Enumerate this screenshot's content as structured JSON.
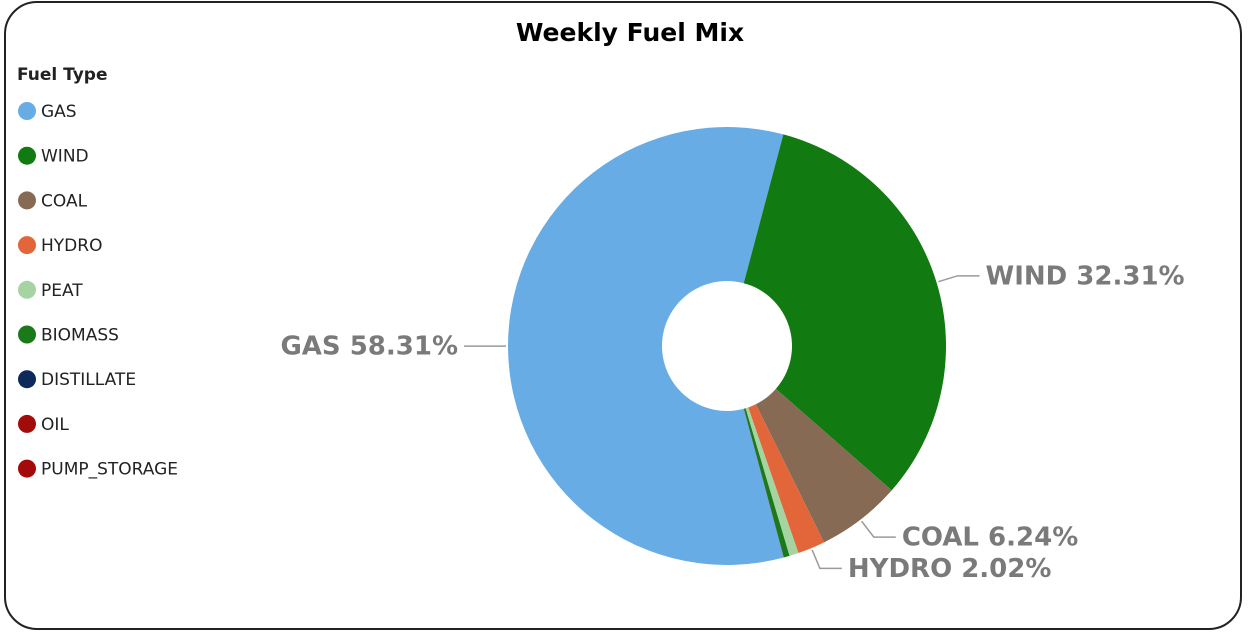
{
  "chart_data": {
    "type": "donut",
    "title": "Weekly Fuel Mix",
    "legend_title": "Fuel Type",
    "legend_position": "top-left",
    "categories": [
      "GAS",
      "WIND",
      "COAL",
      "HYDRO",
      "PEAT",
      "BIOMASS",
      "DISTILLATE",
      "OIL",
      "PUMP_STORAGE"
    ],
    "values": [
      58.31,
      32.31,
      6.24,
      2.02,
      0.68,
      0.42,
      0.01,
      0.01,
      0.0
    ],
    "value_labels": [
      "GAS 58.31%",
      "WIND 32.31%",
      "COAL 6.24%",
      "HYDRO 2.02%",
      null,
      null,
      null,
      null,
      null
    ],
    "colors": [
      "#68ace5",
      "#117a11",
      "#876a53",
      "#e3663a",
      "#a6d3a2",
      "#1a7a1a",
      "#0c2a5a",
      "#a30a0a",
      "#a30a0a"
    ]
  }
}
